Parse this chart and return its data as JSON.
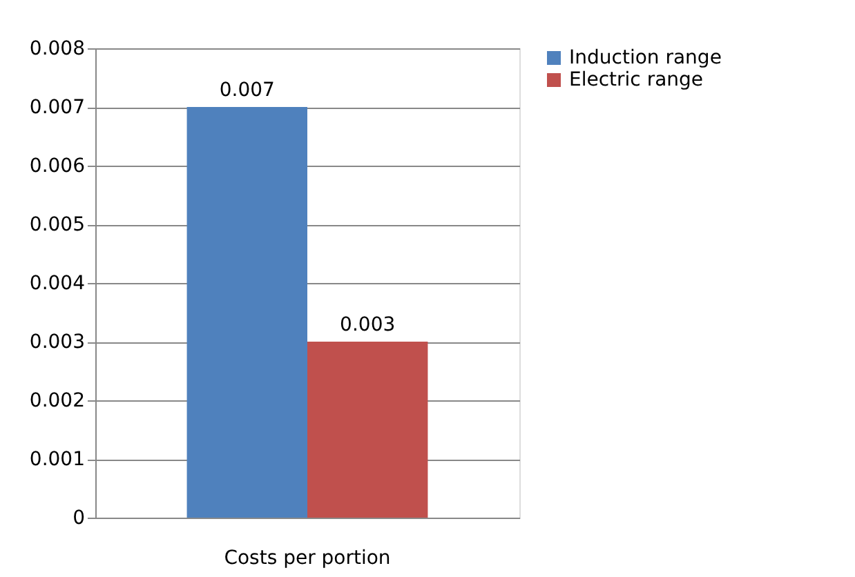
{
  "chart_data": {
    "type": "bar",
    "categories": [
      "Costs per portion"
    ],
    "series": [
      {
        "name": "Induction range",
        "color": "#4f81bd",
        "values": [
          0.007
        ]
      },
      {
        "name": "Electric range",
        "color": "#c0504d",
        "values": [
          0.003
        ]
      }
    ],
    "ylim": [
      0,
      0.008
    ],
    "yticks": [
      0,
      0.001,
      0.002,
      0.003,
      0.004,
      0.005,
      0.006,
      0.007,
      0.008
    ],
    "grid": "y",
    "legend": "right",
    "data_labels": true
  }
}
